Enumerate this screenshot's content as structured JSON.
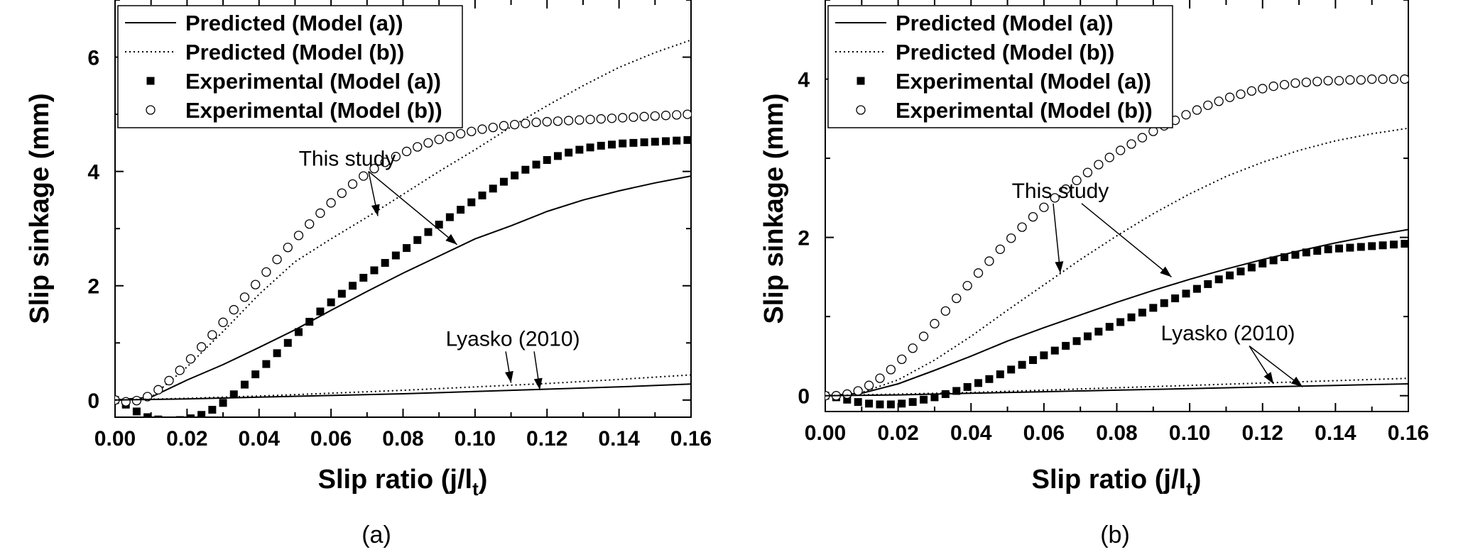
{
  "chart_data": [
    {
      "type": "line",
      "panel_label": "(a)",
      "xlabel": "Slip ratio (j/l",
      "xlabel_sub": "t",
      "xlabel_end": ")",
      "ylabel": "Slip sinkage (mm)",
      "xlim": [
        0,
        0.16
      ],
      "ylim": [
        -0.3,
        7
      ],
      "xticks": [
        "0.00",
        "0.02",
        "0.04",
        "0.06",
        "0.08",
        "0.10",
        "0.12",
        "0.14",
        "0.16"
      ],
      "yticks": [
        "0",
        "2",
        "4",
        "6"
      ],
      "legend_position": "top-left",
      "legend": [
        {
          "label": "Predicted (Model (a))",
          "marker": "solid-line"
        },
        {
          "label": "Predicted (Model (b))",
          "marker": "dotted-line"
        },
        {
          "label": "Experimental (Model (a))",
          "marker": "filled-square"
        },
        {
          "label": "Experimental (Model (b))",
          "marker": "open-circle"
        }
      ],
      "series": [
        {
          "style": "solid",
          "x": [
            0,
            0.01,
            0.02,
            0.03,
            0.04,
            0.05,
            0.06,
            0.07,
            0.08,
            0.09,
            0.1,
            0.11,
            0.12,
            0.13,
            0.14,
            0.15,
            0.16
          ],
          "y": [
            0,
            0.05,
            0.35,
            0.62,
            0.92,
            1.23,
            1.57,
            1.9,
            2.22,
            2.52,
            2.82,
            3.05,
            3.3,
            3.5,
            3.66,
            3.8,
            3.92
          ]
        },
        {
          "style": "dotted",
          "x": [
            0,
            0.01,
            0.02,
            0.03,
            0.04,
            0.05,
            0.06,
            0.07,
            0.08,
            0.09,
            0.1,
            0.11,
            0.12,
            0.13,
            0.14,
            0.15,
            0.16
          ],
          "y": [
            0,
            0.05,
            0.58,
            1.2,
            1.85,
            2.42,
            2.82,
            3.2,
            3.6,
            4.0,
            4.38,
            4.78,
            5.15,
            5.5,
            5.82,
            6.08,
            6.3
          ]
        },
        {
          "style": "square",
          "x": [
            0,
            0.003,
            0.006,
            0.009,
            0.012,
            0.015,
            0.018,
            0.021,
            0.024,
            0.027,
            0.03,
            0.033,
            0.036,
            0.039,
            0.042,
            0.045,
            0.048,
            0.051,
            0.054,
            0.057,
            0.06,
            0.063,
            0.066,
            0.069,
            0.072,
            0.075,
            0.078,
            0.081,
            0.084,
            0.087,
            0.09,
            0.093,
            0.096,
            0.099,
            0.102,
            0.105,
            0.108,
            0.111,
            0.114,
            0.117,
            0.12,
            0.123,
            0.126,
            0.129,
            0.132,
            0.135,
            0.138,
            0.141,
            0.144,
            0.147,
            0.15,
            0.153,
            0.156,
            0.159
          ],
          "y": [
            0,
            -0.08,
            -0.2,
            -0.3,
            -0.34,
            -0.36,
            -0.35,
            -0.32,
            -0.26,
            -0.17,
            -0.05,
            0.1,
            0.27,
            0.45,
            0.63,
            0.82,
            1.0,
            1.19,
            1.37,
            1.55,
            1.71,
            1.86,
            2.0,
            2.14,
            2.27,
            2.4,
            2.53,
            2.66,
            2.8,
            2.94,
            3.07,
            3.2,
            3.33,
            3.46,
            3.58,
            3.7,
            3.82,
            3.93,
            4.03,
            4.12,
            4.2,
            4.27,
            4.33,
            4.38,
            4.42,
            4.45,
            4.47,
            4.49,
            4.5,
            4.51,
            4.52,
            4.53,
            4.54,
            4.55
          ]
        },
        {
          "style": "circle",
          "x": [
            0,
            0.003,
            0.006,
            0.009,
            0.012,
            0.015,
            0.018,
            0.021,
            0.024,
            0.027,
            0.03,
            0.033,
            0.036,
            0.039,
            0.042,
            0.045,
            0.048,
            0.051,
            0.054,
            0.057,
            0.06,
            0.063,
            0.066,
            0.069,
            0.072,
            0.075,
            0.078,
            0.081,
            0.084,
            0.087,
            0.09,
            0.093,
            0.096,
            0.099,
            0.102,
            0.105,
            0.108,
            0.111,
            0.114,
            0.117,
            0.12,
            0.123,
            0.126,
            0.129,
            0.132,
            0.135,
            0.138,
            0.141,
            0.144,
            0.147,
            0.15,
            0.153,
            0.156,
            0.159
          ],
          "y": [
            0,
            -0.03,
            -0.01,
            0.06,
            0.18,
            0.34,
            0.52,
            0.72,
            0.93,
            1.14,
            1.36,
            1.58,
            1.8,
            2.02,
            2.24,
            2.46,
            2.67,
            2.88,
            3.08,
            3.27,
            3.45,
            3.62,
            3.78,
            3.92,
            4.05,
            4.16,
            4.26,
            4.35,
            4.43,
            4.5,
            4.56,
            4.61,
            4.66,
            4.7,
            4.74,
            4.77,
            4.8,
            4.82,
            4.84,
            4.86,
            4.87,
            4.88,
            4.89,
            4.9,
            4.91,
            4.92,
            4.93,
            4.94,
            4.95,
            4.96,
            4.97,
            4.98,
            4.99,
            5.0
          ]
        },
        {
          "style": "solid",
          "x": [
            0,
            0.02,
            0.04,
            0.06,
            0.08,
            0.1,
            0.12,
            0.14,
            0.16
          ],
          "y": [
            0,
            0.02,
            0.05,
            0.08,
            0.11,
            0.15,
            0.19,
            0.23,
            0.28
          ]
        },
        {
          "style": "dotted",
          "x": [
            0,
            0.02,
            0.04,
            0.06,
            0.08,
            0.1,
            0.12,
            0.14,
            0.16
          ],
          "y": [
            0,
            0.03,
            0.07,
            0.12,
            0.17,
            0.23,
            0.29,
            0.36,
            0.44
          ]
        }
      ],
      "annotations": [
        {
          "text": "This study",
          "tx": 0.0645,
          "ty": 4.1,
          "arrows": [
            [
              0.073,
              3.22
            ],
            [
              0.095,
              2.72
            ]
          ]
        },
        {
          "text": "Lyasko (2010)",
          "tx": 0.1105,
          "ty": 0.95,
          "arrows": [
            [
              0.11,
              0.3
            ],
            [
              0.118,
              0.18
            ]
          ]
        }
      ]
    },
    {
      "type": "line",
      "panel_label": "(b)",
      "xlabel": "Slip ratio (j/l",
      "xlabel_sub": "t",
      "xlabel_end": ")",
      "ylabel": "Slip sinkage (mm)",
      "xlim": [
        0,
        0.16
      ],
      "ylim": [
        -0.2,
        5
      ],
      "xticks": [
        "0.00",
        "0.02",
        "0.04",
        "0.06",
        "0.08",
        "0.10",
        "0.12",
        "0.14",
        "0.16"
      ],
      "yticks": [
        "0",
        "2",
        "4"
      ],
      "legend_position": "top-left",
      "legend": [
        {
          "label": "Predicted (Model (a))",
          "marker": "solid-line"
        },
        {
          "label": "Predicted (Model (b))",
          "marker": "dotted-line"
        },
        {
          "label": "Experimental (Model (a))",
          "marker": "filled-square"
        },
        {
          "label": "Experimental (Model (b))",
          "marker": "open-circle"
        }
      ],
      "series": [
        {
          "style": "solid",
          "x": [
            0,
            0.01,
            0.02,
            0.03,
            0.04,
            0.05,
            0.06,
            0.07,
            0.08,
            0.09,
            0.1,
            0.11,
            0.12,
            0.13,
            0.14,
            0.15,
            0.16
          ],
          "y": [
            0,
            0.03,
            0.15,
            0.32,
            0.5,
            0.69,
            0.86,
            1.02,
            1.18,
            1.33,
            1.47,
            1.6,
            1.72,
            1.83,
            1.93,
            2.02,
            2.1
          ]
        },
        {
          "style": "dotted",
          "x": [
            0,
            0.01,
            0.02,
            0.03,
            0.04,
            0.05,
            0.06,
            0.07,
            0.08,
            0.09,
            0.1,
            0.11,
            0.12,
            0.13,
            0.14,
            0.15,
            0.16
          ],
          "y": [
            0,
            0.04,
            0.2,
            0.45,
            0.75,
            1.08,
            1.4,
            1.72,
            2.02,
            2.3,
            2.55,
            2.77,
            2.95,
            3.1,
            3.22,
            3.31,
            3.38
          ]
        },
        {
          "style": "square",
          "x": [
            0,
            0.003,
            0.006,
            0.009,
            0.012,
            0.015,
            0.018,
            0.021,
            0.024,
            0.027,
            0.03,
            0.033,
            0.036,
            0.039,
            0.042,
            0.045,
            0.048,
            0.051,
            0.054,
            0.057,
            0.06,
            0.063,
            0.066,
            0.069,
            0.072,
            0.075,
            0.078,
            0.081,
            0.084,
            0.087,
            0.09,
            0.093,
            0.096,
            0.099,
            0.102,
            0.105,
            0.108,
            0.111,
            0.114,
            0.117,
            0.12,
            0.123,
            0.126,
            0.129,
            0.132,
            0.135,
            0.138,
            0.141,
            0.144,
            0.147,
            0.15,
            0.153,
            0.156,
            0.159
          ],
          "y": [
            0,
            -0.02,
            -0.05,
            -0.08,
            -0.1,
            -0.11,
            -0.11,
            -0.1,
            -0.08,
            -0.05,
            -0.02,
            0.02,
            0.06,
            0.11,
            0.16,
            0.21,
            0.27,
            0.33,
            0.39,
            0.45,
            0.51,
            0.57,
            0.63,
            0.69,
            0.75,
            0.81,
            0.87,
            0.93,
            0.99,
            1.05,
            1.11,
            1.17,
            1.23,
            1.29,
            1.35,
            1.41,
            1.47,
            1.52,
            1.57,
            1.62,
            1.67,
            1.71,
            1.75,
            1.78,
            1.81,
            1.83,
            1.85,
            1.86,
            1.87,
            1.88,
            1.89,
            1.9,
            1.91,
            1.92
          ]
        },
        {
          "style": "circle",
          "x": [
            0,
            0.003,
            0.006,
            0.009,
            0.012,
            0.015,
            0.018,
            0.021,
            0.024,
            0.027,
            0.03,
            0.033,
            0.036,
            0.039,
            0.042,
            0.045,
            0.048,
            0.051,
            0.054,
            0.057,
            0.06,
            0.063,
            0.066,
            0.069,
            0.072,
            0.075,
            0.078,
            0.081,
            0.084,
            0.087,
            0.09,
            0.093,
            0.096,
            0.099,
            0.102,
            0.105,
            0.108,
            0.111,
            0.114,
            0.117,
            0.12,
            0.123,
            0.126,
            0.129,
            0.132,
            0.135,
            0.138,
            0.141,
            0.144,
            0.147,
            0.15,
            0.153,
            0.156,
            0.159
          ],
          "y": [
            0,
            0.0,
            0.02,
            0.06,
            0.13,
            0.22,
            0.33,
            0.46,
            0.6,
            0.75,
            0.91,
            1.07,
            1.23,
            1.39,
            1.55,
            1.7,
            1.85,
            1.99,
            2.13,
            2.26,
            2.38,
            2.5,
            2.61,
            2.72,
            2.82,
            2.92,
            3.01,
            3.1,
            3.18,
            3.26,
            3.34,
            3.41,
            3.48,
            3.55,
            3.61,
            3.67,
            3.72,
            3.77,
            3.81,
            3.85,
            3.88,
            3.91,
            3.93,
            3.95,
            3.96,
            3.97,
            3.98,
            3.98,
            3.99,
            3.99,
            4.0,
            4.0,
            4.0,
            4.0
          ]
        },
        {
          "style": "solid",
          "x": [
            0,
            0.02,
            0.04,
            0.06,
            0.08,
            0.1,
            0.12,
            0.14,
            0.16
          ],
          "y": [
            0,
            0.01,
            0.03,
            0.05,
            0.07,
            0.09,
            0.11,
            0.13,
            0.15
          ]
        },
        {
          "style": "dotted",
          "x": [
            0,
            0.02,
            0.04,
            0.06,
            0.08,
            0.1,
            0.12,
            0.14,
            0.16
          ],
          "y": [
            0,
            0.02,
            0.04,
            0.07,
            0.1,
            0.13,
            0.16,
            0.19,
            0.22
          ]
        }
      ],
      "annotations": [
        {
          "text": "This study",
          "tx": 0.0645,
          "ty": 2.5,
          "arrows": [
            [
              0.0645,
              1.55
            ],
            [
              0.095,
              1.5
            ]
          ]
        },
        {
          "text": "Lyasko (2010)",
          "tx": 0.1105,
          "ty": 0.7,
          "arrows": [
            [
              0.123,
              0.15
            ],
            [
              0.131,
              0.11
            ]
          ]
        }
      ]
    }
  ]
}
